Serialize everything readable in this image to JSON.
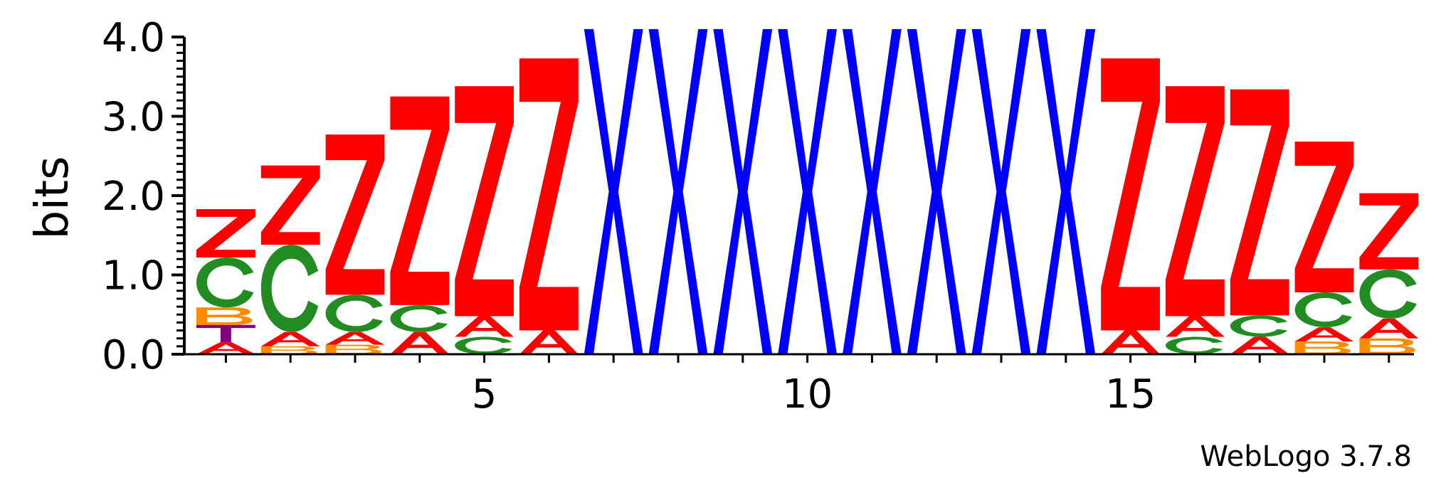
{
  "chart_data": {
    "type": "sequence-logo",
    "ylabel": "bits",
    "ylim": [
      0,
      4.0
    ],
    "yticks": [
      "0.0",
      "1.0",
      "2.0",
      "3.0",
      "4.0"
    ],
    "xticks": [
      5,
      10,
      15
    ],
    "xrange": [
      1,
      19
    ],
    "colors": {
      "A": "#ff0000",
      "B": "#ff8c00",
      "C": "#228b22",
      "T": "#800080",
      "Z": "#ff0000",
      "X": "#0000ff"
    },
    "positions": [
      {
        "pos": 1,
        "stack": [
          {
            "letter": "A",
            "height": 0.15
          },
          {
            "letter": "T",
            "height": 0.22
          },
          {
            "letter": "B",
            "height": 0.22
          },
          {
            "letter": "C",
            "height": 0.63
          },
          {
            "letter": "Z",
            "height": 0.61
          }
        ]
      },
      {
        "pos": 2,
        "stack": [
          {
            "letter": "B",
            "height": 0.1
          },
          {
            "letter": "A",
            "height": 0.18
          },
          {
            "letter": "C",
            "height": 1.1
          },
          {
            "letter": "Z",
            "height": 1.0
          }
        ]
      },
      {
        "pos": 3,
        "stack": [
          {
            "letter": "B",
            "height": 0.12
          },
          {
            "letter": "A",
            "height": 0.16
          },
          {
            "letter": "C",
            "height": 0.47
          },
          {
            "letter": "Z",
            "height": 2.02
          }
        ]
      },
      {
        "pos": 4,
        "stack": [
          {
            "letter": "A",
            "height": 0.28
          },
          {
            "letter": "C",
            "height": 0.34
          },
          {
            "letter": "Z",
            "height": 2.63
          }
        ]
      },
      {
        "pos": 5,
        "stack": [
          {
            "letter": "C",
            "height": 0.22
          },
          {
            "letter": "A",
            "height": 0.26
          },
          {
            "letter": "Z",
            "height": 2.9
          }
        ]
      },
      {
        "pos": 6,
        "stack": [
          {
            "letter": "A",
            "height": 0.3
          },
          {
            "letter": "Z",
            "height": 3.43
          }
        ]
      },
      {
        "pos": 7,
        "stack": [
          {
            "letter": "X",
            "height": 4.1
          }
        ]
      },
      {
        "pos": 8,
        "stack": [
          {
            "letter": "X",
            "height": 4.1
          }
        ]
      },
      {
        "pos": 9,
        "stack": [
          {
            "letter": "X",
            "height": 4.1
          }
        ]
      },
      {
        "pos": 10,
        "stack": [
          {
            "letter": "X",
            "height": 4.1
          }
        ]
      },
      {
        "pos": 11,
        "stack": [
          {
            "letter": "X",
            "height": 4.1
          }
        ]
      },
      {
        "pos": 12,
        "stack": [
          {
            "letter": "X",
            "height": 4.1
          }
        ]
      },
      {
        "pos": 13,
        "stack": [
          {
            "letter": "X",
            "height": 4.1
          }
        ]
      },
      {
        "pos": 14,
        "stack": [
          {
            "letter": "X",
            "height": 4.1
          }
        ]
      },
      {
        "pos": 15,
        "stack": [
          {
            "letter": "A",
            "height": 0.3
          },
          {
            "letter": "Z",
            "height": 3.43
          }
        ]
      },
      {
        "pos": 16,
        "stack": [
          {
            "letter": "C",
            "height": 0.22
          },
          {
            "letter": "A",
            "height": 0.26
          },
          {
            "letter": "Z",
            "height": 2.9
          }
        ]
      },
      {
        "pos": 17,
        "stack": [
          {
            "letter": "A",
            "height": 0.22
          },
          {
            "letter": "C",
            "height": 0.27
          },
          {
            "letter": "Z",
            "height": 2.85
          }
        ]
      },
      {
        "pos": 18,
        "stack": [
          {
            "letter": "B",
            "height": 0.16
          },
          {
            "letter": "A",
            "height": 0.18
          },
          {
            "letter": "C",
            "height": 0.44
          },
          {
            "letter": "Z",
            "height": 1.9
          }
        ]
      },
      {
        "pos": 19,
        "stack": [
          {
            "letter": "B",
            "height": 0.2
          },
          {
            "letter": "A",
            "height": 0.25
          },
          {
            "letter": "C",
            "height": 0.62
          },
          {
            "letter": "Z",
            "height": 0.96
          }
        ]
      }
    ]
  },
  "footer": {
    "credit": "WebLogo 3.7.8"
  }
}
